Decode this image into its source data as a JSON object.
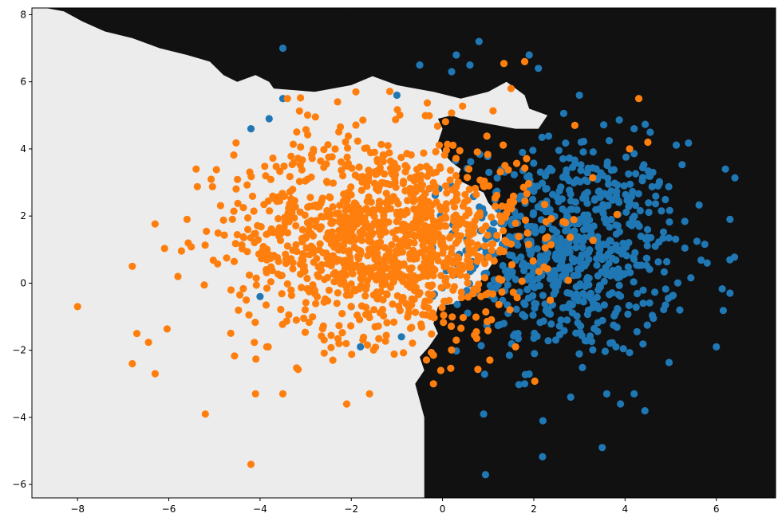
{
  "chart_data": {
    "type": "scatter",
    "title": "",
    "xlabel": "",
    "ylabel": "",
    "xlim": [
      -9.0,
      7.3
    ],
    "ylim": [
      -6.4,
      8.2
    ],
    "x_ticks": [
      -8,
      -6,
      -4,
      -2,
      0,
      2,
      4,
      6
    ],
    "y_ticks": [
      -6,
      -4,
      -2,
      0,
      2,
      4,
      6,
      8
    ],
    "x_tick_labels": [
      "−8",
      "−6",
      "−4",
      "−2",
      "0",
      "2",
      "4",
      "6"
    ],
    "y_tick_labels": [
      "−6",
      "−4",
      "−2",
      "0",
      "2",
      "4",
      "6",
      "8"
    ],
    "grid": false,
    "legend": "none",
    "background_regions": {
      "description": "decision regions",
      "light_color": "#ececec",
      "dark_color": "#111111",
      "dark_region_boundary": [
        [
          -8.7,
          8.2
        ],
        [
          -8.3,
          8.1
        ],
        [
          -7.9,
          7.8
        ],
        [
          -7.4,
          7.5
        ],
        [
          -6.8,
          7.3
        ],
        [
          -6.2,
          7.0
        ],
        [
          -5.6,
          6.8
        ],
        [
          -5.1,
          6.6
        ],
        [
          -4.8,
          6.2
        ],
        [
          -4.5,
          6.0
        ],
        [
          -4.1,
          6.2
        ],
        [
          -3.8,
          6.0
        ],
        [
          -3.7,
          5.8
        ],
        [
          -2.8,
          5.7
        ],
        [
          -2.0,
          5.9
        ],
        [
          -1.3,
          6.3
        ],
        [
          -1.0,
          6.6
        ],
        [
          -0.9,
          6.9
        ],
        [
          -1.0,
          7.4
        ],
        [
          -1.4,
          7.7
        ],
        [
          -1.8,
          7.9
        ],
        [
          -2.6,
          8.2
        ]
      ],
      "dark_main_boundary": [
        [
          -2.6,
          8.2
        ],
        [
          -2.5,
          7.6
        ],
        [
          -2.2,
          7.4
        ],
        [
          -2.0,
          7.2
        ],
        [
          -2.1,
          6.8
        ],
        [
          -1.9,
          6.6
        ],
        [
          -1.8,
          6.3
        ],
        [
          -1.4,
          6.1
        ],
        [
          -1.0,
          5.9
        ],
        [
          -0.2,
          5.7
        ],
        [
          0.4,
          5.5
        ],
        [
          1.0,
          5.7
        ],
        [
          1.4,
          6.0
        ],
        [
          1.8,
          5.6
        ],
        [
          1.9,
          5.2
        ],
        [
          2.3,
          5.0
        ],
        [
          2.1,
          4.6
        ],
        [
          1.6,
          4.6
        ],
        [
          1.2,
          4.7
        ],
        [
          0.8,
          4.8
        ],
        [
          0.4,
          4.9
        ],
        [
          0.2,
          5.0
        ],
        [
          -0.1,
          4.9
        ],
        [
          0.0,
          4.6
        ],
        [
          -0.1,
          4.2
        ],
        [
          0.0,
          3.9
        ],
        [
          0.2,
          3.6
        ],
        [
          0.4,
          3.4
        ],
        [
          0.3,
          3.1
        ],
        [
          0.6,
          2.9
        ],
        [
          0.9,
          2.7
        ],
        [
          1.0,
          2.4
        ],
        [
          1.2,
          2.1
        ],
        [
          1.3,
          1.6
        ],
        [
          1.3,
          1.1
        ],
        [
          1.1,
          0.6
        ],
        [
          0.9,
          0.2
        ],
        [
          0.7,
          -0.2
        ],
        [
          0.3,
          -0.6
        ],
        [
          -0.1,
          -0.7
        ],
        [
          -0.2,
          -1.2
        ],
        [
          -0.1,
          -1.5
        ],
        [
          -0.3,
          -1.9
        ],
        [
          -0.5,
          -2.2
        ],
        [
          -0.4,
          -2.6
        ],
        [
          -0.6,
          -3.0
        ],
        [
          -0.5,
          -3.5
        ],
        [
          -0.4,
          -4.0
        ],
        [
          -0.4,
          -6.4
        ],
        [
          7.3,
          -6.4
        ],
        [
          7.3,
          8.2
        ]
      ]
    },
    "series": [
      {
        "color": "#1f77b4",
        "center": [
          2.8,
          1.0
        ],
        "spread": [
          1.2,
          1.6
        ],
        "count": 750,
        "sample_points": [
          [
            -3.5,
            7.0
          ],
          [
            0.8,
            7.2
          ],
          [
            0.3,
            6.8
          ],
          [
            1.9,
            6.8
          ],
          [
            2.1,
            6.4
          ],
          [
            -0.5,
            6.5
          ],
          [
            0.6,
            6.5
          ],
          [
            0.2,
            6.3
          ],
          [
            -3.5,
            5.5
          ],
          [
            -4.2,
            4.6
          ],
          [
            -3.8,
            4.9
          ],
          [
            -1.0,
            5.6
          ],
          [
            3.0,
            5.6
          ],
          [
            4.2,
            4.6
          ],
          [
            6.2,
            3.4
          ],
          [
            6.3,
            1.9
          ],
          [
            6.3,
            -0.3
          ],
          [
            5.8,
            0.6
          ],
          [
            5.2,
            -0.8
          ],
          [
            6.0,
            -1.9
          ],
          [
            2.2,
            -4.1
          ],
          [
            1.8,
            -3.0
          ],
          [
            3.6,
            -3.3
          ],
          [
            3.5,
            -4.9
          ],
          [
            0.9,
            -3.9
          ],
          [
            4.2,
            -3.3
          ],
          [
            3.8,
            -1.9
          ],
          [
            -0.9,
            -1.6
          ],
          [
            -1.8,
            -1.9
          ],
          [
            -2.0,
            -0.7
          ],
          [
            -4.0,
            -0.4
          ]
        ]
      },
      {
        "color": "#ff7f0e",
        "center": [
          -1.3,
          1.4
        ],
        "spread": [
          1.6,
          1.5
        ],
        "count": 1250,
        "sample_points": [
          [
            -8.0,
            -0.7
          ],
          [
            -6.8,
            0.5
          ],
          [
            -6.7,
            -1.5
          ],
          [
            -6.8,
            -2.4
          ],
          [
            -6.3,
            -2.7
          ],
          [
            -4.2,
            -5.4
          ],
          [
            -5.2,
            -3.9
          ],
          [
            -4.1,
            -3.3
          ],
          [
            -3.5,
            -3.3
          ],
          [
            -2.1,
            -3.6
          ],
          [
            -1.6,
            -3.3
          ],
          [
            -0.2,
            -3.0
          ],
          [
            1.6,
            -1.9
          ],
          [
            0.3,
            -1.7
          ],
          [
            1.8,
            6.6
          ],
          [
            1.5,
            5.8
          ],
          [
            4.3,
            5.5
          ],
          [
            4.1,
            4.0
          ],
          [
            4.5,
            4.2
          ],
          [
            2.9,
            4.7
          ],
          [
            -2.3,
            5.4
          ],
          [
            -1.9,
            5.7
          ],
          [
            -3.4,
            5.5
          ],
          [
            -5.4,
            3.4
          ],
          [
            -5.6,
            1.9
          ],
          [
            -5.8,
            0.2
          ]
        ]
      }
    ]
  }
}
